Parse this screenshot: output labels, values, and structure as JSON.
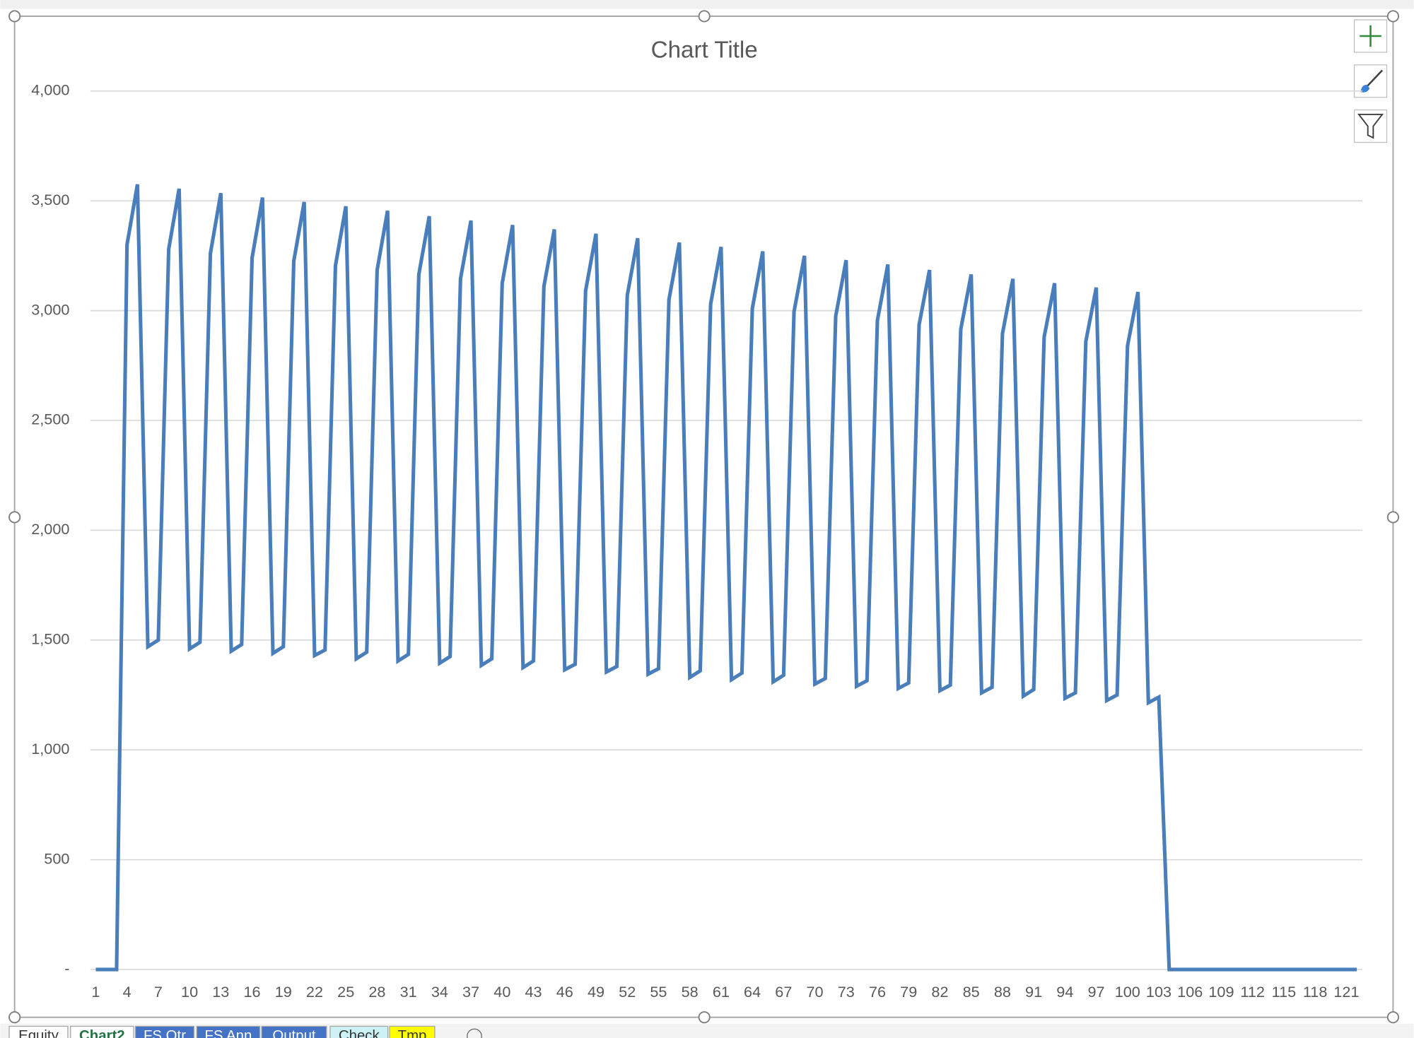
{
  "chart_data": {
    "type": "line",
    "title": "Chart Title",
    "color": "#4a7ebb",
    "grid": true,
    "ylim": [
      0,
      4000
    ],
    "yticks": [
      {
        "value": 0,
        "label": "-"
      },
      500,
      {
        "value": 1000,
        "label": "1,000"
      },
      {
        "value": 1500,
        "label": "1,500"
      },
      {
        "value": 2000,
        "label": "2,000"
      },
      {
        "value": 2500,
        "label": "2,500"
      },
      {
        "value": 3000,
        "label": "3,000"
      },
      {
        "value": 3500,
        "label": "3,500"
      },
      {
        "value": 4000,
        "label": "4,000"
      }
    ],
    "categories": [
      1,
      null,
      null,
      4,
      null,
      null,
      7,
      null,
      null,
      10,
      null,
      null,
      13,
      null,
      null,
      16,
      null,
      null,
      19,
      null,
      null,
      22,
      null,
      null,
      25,
      null,
      null,
      28,
      null,
      null,
      31,
      null,
      null,
      34,
      null,
      null,
      37,
      null,
      null,
      40,
      null,
      null,
      43,
      null,
      null,
      46,
      null,
      null,
      49,
      null,
      null,
      52,
      null,
      null,
      55,
      null,
      null,
      58,
      null,
      null,
      61,
      null,
      null,
      64,
      null,
      null,
      67,
      null,
      null,
      70,
      null,
      null,
      73,
      null,
      null,
      76,
      null,
      null,
      79,
      null,
      null,
      82,
      null,
      null,
      85,
      null,
      null,
      88,
      null,
      null,
      91,
      null,
      null,
      94,
      null,
      null,
      97,
      null,
      null,
      100,
      null,
      null,
      103,
      null,
      null,
      106,
      null,
      null,
      109,
      null,
      null,
      112,
      null,
      null,
      115,
      null,
      null,
      118,
      null,
      null,
      121,
      null
    ],
    "values": [
      0,
      0,
      0,
      3300,
      3575,
      1470,
      1500,
      3280,
      3555,
      1460,
      1490,
      3260,
      3535,
      1450,
      1480,
      3240,
      3515,
      1440,
      1470,
      3225,
      3495,
      1430,
      1455,
      3205,
      3475,
      1415,
      1445,
      3185,
      3455,
      1405,
      1435,
      3165,
      3430,
      1395,
      1425,
      3145,
      3410,
      1385,
      1415,
      3125,
      3390,
      1375,
      1405,
      3110,
      3370,
      1365,
      1390,
      3090,
      3350,
      1355,
      1380,
      3070,
      3330,
      1345,
      1370,
      3050,
      3310,
      1330,
      1360,
      3030,
      3290,
      1320,
      1350,
      3010,
      3270,
      1310,
      1340,
      2995,
      3250,
      1300,
      1325,
      2975,
      3230,
      1290,
      1315,
      2955,
      3210,
      1280,
      1305,
      2935,
      3185,
      1270,
      1295,
      2915,
      3165,
      1260,
      1285,
      2895,
      3145,
      1245,
      1275,
      2880,
      3125,
      1235,
      1260,
      2860,
      3105,
      1225,
      1250,
      2840,
      3085,
      1215,
      1240,
      0,
      0,
      0,
      0,
      0,
      0,
      0,
      0,
      0,
      0,
      0,
      0,
      0,
      0,
      0,
      0,
      0,
      0,
      0
    ]
  },
  "sheet_tabs": [
    "Equity",
    "Chart2",
    "FS Qtr",
    "FS Ann",
    "Output",
    "Check",
    "Tmp"
  ]
}
